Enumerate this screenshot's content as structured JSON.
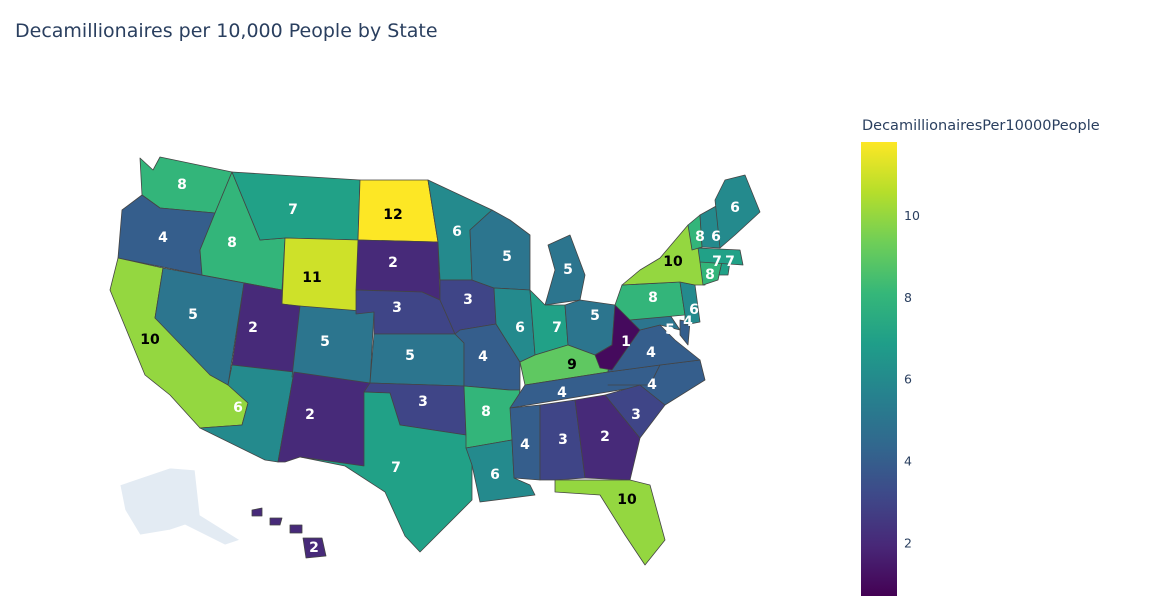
{
  "title": "Decamillionaires per 10,000 People by State",
  "colorbar": {
    "title": "DecamillionairesPer10000People",
    "min": 0.7,
    "max": 11.8,
    "ticks": [
      2,
      4,
      6,
      8,
      10
    ]
  },
  "colorscale": [
    "#440154",
    "#482878",
    "#3e4989",
    "#31688e",
    "#26828e",
    "#1f9e89",
    "#35b779",
    "#6ece58",
    "#b5de2b",
    "#fde725"
  ],
  "states": [
    {
      "abbr": "WA",
      "value": 8,
      "label": "8"
    },
    {
      "abbr": "OR",
      "value": 4,
      "label": "4"
    },
    {
      "abbr": "CA",
      "value": 10,
      "label": "10"
    },
    {
      "abbr": "ID",
      "value": 8,
      "label": "8"
    },
    {
      "abbr": "NV",
      "value": 5,
      "label": "5"
    },
    {
      "abbr": "MT",
      "value": 7,
      "label": "7"
    },
    {
      "abbr": "WY",
      "value": 11,
      "label": "11"
    },
    {
      "abbr": "UT",
      "value": 2,
      "label": "2"
    },
    {
      "abbr": "AZ",
      "value": 6,
      "label": "6"
    },
    {
      "abbr": "CO",
      "value": 5,
      "label": "5"
    },
    {
      "abbr": "NM",
      "value": 2,
      "label": "2"
    },
    {
      "abbr": "ND",
      "value": 12,
      "label": "12"
    },
    {
      "abbr": "SD",
      "value": 2,
      "label": "2"
    },
    {
      "abbr": "NE",
      "value": 3,
      "label": "3"
    },
    {
      "abbr": "KS",
      "value": 5,
      "label": "5"
    },
    {
      "abbr": "OK",
      "value": 3,
      "label": "3"
    },
    {
      "abbr": "TX",
      "value": 7,
      "label": "7"
    },
    {
      "abbr": "MN",
      "value": 6,
      "label": "6"
    },
    {
      "abbr": "IA",
      "value": 3,
      "label": "3"
    },
    {
      "abbr": "MO",
      "value": 4,
      "label": "4"
    },
    {
      "abbr": "AR",
      "value": 8,
      "label": "8"
    },
    {
      "abbr": "LA",
      "value": 6,
      "label": "6"
    },
    {
      "abbr": "WI",
      "value": 5,
      "label": "5"
    },
    {
      "abbr": "IL",
      "value": 6,
      "label": "6"
    },
    {
      "abbr": "MI",
      "value": 5,
      "label": "5"
    },
    {
      "abbr": "IN",
      "value": 7,
      "label": "7"
    },
    {
      "abbr": "OH",
      "value": 5,
      "label": "5"
    },
    {
      "abbr": "KY",
      "value": 9,
      "label": "9"
    },
    {
      "abbr": "TN",
      "value": 4,
      "label": "4"
    },
    {
      "abbr": "MS",
      "value": 4,
      "label": "4"
    },
    {
      "abbr": "AL",
      "value": 3,
      "label": "3"
    },
    {
      "abbr": "GA",
      "value": 2,
      "label": "2"
    },
    {
      "abbr": "FL",
      "value": 10,
      "label": "10"
    },
    {
      "abbr": "SC",
      "value": 3,
      "label": "3"
    },
    {
      "abbr": "NC",
      "value": 4,
      "label": "4"
    },
    {
      "abbr": "VA",
      "value": 4,
      "label": "4"
    },
    {
      "abbr": "WV",
      "value": 1,
      "label": "1"
    },
    {
      "abbr": "MD",
      "value": 5,
      "label": "5"
    },
    {
      "abbr": "DE",
      "value": 4,
      "label": "4"
    },
    {
      "abbr": "PA",
      "value": 8,
      "label": "8"
    },
    {
      "abbr": "NJ",
      "value": 6,
      "label": "6"
    },
    {
      "abbr": "NY",
      "value": 10,
      "label": "10"
    },
    {
      "abbr": "CT",
      "value": 8,
      "label": "8"
    },
    {
      "abbr": "RI",
      "value": 7,
      "label": "7"
    },
    {
      "abbr": "MA",
      "value": 7,
      "label": "7"
    },
    {
      "abbr": "VT",
      "value": 8,
      "label": "8"
    },
    {
      "abbr": "NH",
      "value": 6,
      "label": "6"
    },
    {
      "abbr": "ME",
      "value": 6,
      "label": "6"
    },
    {
      "abbr": "HI",
      "value": 2,
      "label": "2"
    },
    {
      "abbr": "AK",
      "value": null,
      "label": ""
    }
  ]
}
